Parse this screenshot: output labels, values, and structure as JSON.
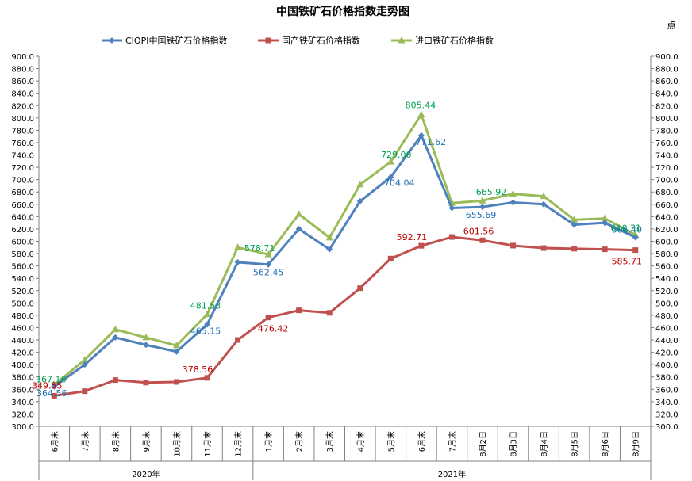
{
  "chart_data": {
    "type": "line",
    "title": "中国铁矿石价格指数走势图",
    "unit_label": "点",
    "ylim": [
      300,
      900
    ],
    "y_step": 20,
    "categories": [
      "6月末",
      "7月末",
      "8月末",
      "9月末",
      "10月末",
      "11月末",
      "12月末",
      "1月末",
      "2月末",
      "3月末",
      "4月末",
      "5月末",
      "6月末",
      "7月末",
      "8月2日",
      "8月3日",
      "8月4日",
      "8月5日",
      "8月6日",
      "8月9日"
    ],
    "year_groups": [
      {
        "label": "2020年",
        "start": 0,
        "end": 6
      },
      {
        "label": "2021年",
        "start": 7,
        "end": 19
      }
    ],
    "grid": false,
    "legend_position": "top",
    "series": [
      {
        "name": "CIOPI中国铁矿石价格指数",
        "color": "#4f81bd",
        "label_color": "#1f6fb0",
        "marker": "diamond",
        "values": [
          364.56,
          400,
          444,
          432,
          421,
          465.15,
          566,
          562.45,
          620,
          587,
          665,
          704.04,
          771.62,
          654,
          655.69,
          663,
          660,
          627,
          630,
          606.4
        ],
        "data_labels": [
          {
            "index": 0,
            "text": "364.56"
          },
          {
            "index": 5,
            "text": "465.15"
          },
          {
            "index": 7,
            "text": "562.45"
          },
          {
            "index": 11,
            "text": "704.04"
          },
          {
            "index": 12,
            "text": "771.62"
          },
          {
            "index": 14,
            "text": "655.69"
          },
          {
            "index": 19,
            "text": "606.40"
          }
        ]
      },
      {
        "name": "国产铁矿石价格指数",
        "color": "#c0504d",
        "label_color": "#c00000",
        "marker": "square",
        "values": [
          349.55,
          357,
          375,
          371,
          372,
          378.56,
          440,
          476.42,
          488,
          484,
          524,
          572,
          592.71,
          607,
          601.56,
          593,
          589,
          588,
          587,
          585.71
        ],
        "data_labels": [
          {
            "index": 0,
            "text": "349.55"
          },
          {
            "index": 5,
            "text": "378.56"
          },
          {
            "index": 7,
            "text": "476.42"
          },
          {
            "index": 12,
            "text": "592.71"
          },
          {
            "index": 14,
            "text": "601.56"
          },
          {
            "index": 19,
            "text": "585.71"
          }
        ]
      },
      {
        "name": "进口铁矿石价格指数",
        "color": "#9bbb59",
        "label_color": "#00a050",
        "marker": "triangle",
        "values": [
          367.16,
          408,
          457,
          444,
          431,
          481.53,
          590,
          578.71,
          644,
          606,
          692,
          729.0,
          805.44,
          662,
          665.92,
          677,
          673,
          635,
          637,
          610.31
        ],
        "data_labels": [
          {
            "index": 0,
            "text": "367.16"
          },
          {
            "index": 5,
            "text": "481.53"
          },
          {
            "index": 7,
            "text": "578.71"
          },
          {
            "index": 11,
            "text": "729.00"
          },
          {
            "index": 12,
            "text": "805.44"
          },
          {
            "index": 14,
            "text": "665.92"
          },
          {
            "index": 19,
            "text": "610.31"
          }
        ]
      }
    ]
  }
}
